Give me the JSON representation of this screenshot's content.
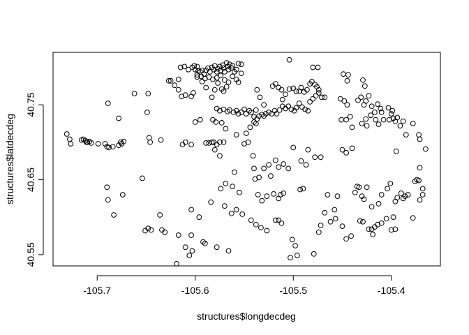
{
  "chart_data": {
    "type": "scatter",
    "xlabel": "structures$longdecdeg",
    "ylabel": "structures$latdecdeg",
    "xlim": [
      -105.745,
      -105.35
    ],
    "ylim": [
      40.535,
      40.82
    ],
    "xticks": [
      {
        "value": -105.7,
        "label": "-105.7"
      },
      {
        "value": -105.6,
        "label": "-105.6"
      },
      {
        "value": -105.5,
        "label": "-105.5"
      },
      {
        "value": -105.4,
        "label": "-105.4"
      }
    ],
    "yticks": [
      {
        "value": 40.55,
        "label": "40.55"
      },
      {
        "value": 40.65,
        "label": "40.65"
      },
      {
        "value": 40.75,
        "label": "40.75"
      }
    ],
    "grid": false,
    "legend": "none",
    "marker": "open-circle",
    "points": [
      [
        -105.731,
        40.711
      ],
      [
        -105.728,
        40.704
      ],
      [
        -105.727,
        40.698
      ],
      [
        -105.716,
        40.703
      ],
      [
        -105.714,
        40.704
      ],
      [
        -105.712,
        40.702
      ],
      [
        -105.711,
        40.7
      ],
      [
        -105.71,
        40.7
      ],
      [
        -105.708,
        40.701
      ],
      [
        -105.706,
        40.699
      ],
      [
        -105.699,
        40.698
      ],
      [
        -105.692,
        40.698
      ],
      [
        -105.69,
        40.694
      ],
      [
        -105.688,
        40.693
      ],
      [
        -105.684,
        40.694
      ],
      [
        -105.678,
        40.696
      ],
      [
        -105.676,
        40.7
      ],
      [
        -105.675,
        40.698
      ],
      [
        -105.673,
        40.701
      ],
      [
        -105.678,
        40.732
      ],
      [
        -105.689,
        40.752
      ],
      [
        -105.662,
        40.765
      ],
      [
        -105.648,
        40.765
      ],
      [
        -105.649,
        40.74
      ],
      [
        -105.647,
        40.706
      ],
      [
        -105.646,
        40.7
      ],
      [
        -105.635,
        40.703
      ],
      [
        -105.627,
        40.782
      ],
      [
        -105.625,
        40.782
      ],
      [
        -105.621,
        40.776
      ],
      [
        -105.617,
        40.784
      ],
      [
        -105.617,
        40.77
      ],
      [
        -105.614,
        40.761
      ],
      [
        -105.61,
        40.763
      ],
      [
        -105.604,
        40.761
      ],
      [
        -105.602,
        40.766
      ],
      [
        -105.598,
        40.787
      ],
      [
        -105.593,
        40.781
      ],
      [
        -105.589,
        40.773
      ],
      [
        -105.595,
        40.73
      ],
      [
        -105.6,
        40.727
      ],
      [
        -105.613,
        40.697
      ],
      [
        -105.61,
        40.7
      ],
      [
        -105.604,
        40.697
      ],
      [
        -105.589,
        40.699
      ],
      [
        -105.586,
        40.699
      ],
      [
        -105.583,
        40.7
      ],
      [
        -105.581,
        40.7
      ],
      [
        -105.578,
        40.697
      ],
      [
        -105.575,
        40.7
      ],
      [
        -105.571,
        40.7
      ],
      [
        -105.558,
        40.71
      ],
      [
        -105.55,
        40.698
      ],
      [
        -105.546,
        40.7
      ],
      [
        -105.541,
        40.682
      ],
      [
        -105.575,
        40.682
      ],
      [
        -105.58,
        40.69
      ],
      [
        -105.615,
        40.8
      ],
      [
        -105.611,
        40.801
      ],
      [
        -105.607,
        40.797
      ],
      [
        -105.603,
        40.8
      ],
      [
        -105.601,
        40.802
      ],
      [
        -105.6,
        40.797
      ],
      [
        -105.598,
        40.801
      ],
      [
        -105.597,
        40.795
      ],
      [
        -105.595,
        40.794
      ],
      [
        -105.593,
        40.796
      ],
      [
        -105.591,
        40.791
      ],
      [
        -105.589,
        40.796
      ],
      [
        -105.587,
        40.799
      ],
      [
        -105.585,
        40.794
      ],
      [
        -105.583,
        40.8
      ],
      [
        -105.581,
        40.797
      ],
      [
        -105.58,
        40.802
      ],
      [
        -105.578,
        40.794
      ],
      [
        -105.577,
        40.798
      ],
      [
        -105.575,
        40.801
      ],
      [
        -105.574,
        40.796
      ],
      [
        -105.572,
        40.803
      ],
      [
        -105.571,
        40.799
      ],
      [
        -105.57,
        40.794
      ],
      [
        -105.568,
        40.806
      ],
      [
        -105.567,
        40.801
      ],
      [
        -105.566,
        40.797
      ],
      [
        -105.565,
        40.804
      ],
      [
        -105.563,
        40.799
      ],
      [
        -105.562,
        40.802
      ],
      [
        -105.56,
        40.794
      ],
      [
        -105.558,
        40.797
      ],
      [
        -105.556,
        40.805
      ],
      [
        -105.553,
        40.804
      ],
      [
        -105.553,
        40.792
      ],
      [
        -105.598,
        40.79
      ],
      [
        -105.594,
        40.788
      ],
      [
        -105.59,
        40.785
      ],
      [
        -105.586,
        40.787
      ],
      [
        -105.582,
        40.784
      ],
      [
        -105.578,
        40.786
      ],
      [
        -105.574,
        40.789
      ],
      [
        -105.57,
        40.783
      ],
      [
        -105.566,
        40.78
      ],
      [
        -105.562,
        40.788
      ],
      [
        -105.558,
        40.784
      ],
      [
        -105.556,
        40.78
      ],
      [
        -105.58,
        40.77
      ],
      [
        -105.577,
        40.779
      ],
      [
        -105.573,
        40.771
      ],
      [
        -105.571,
        40.768
      ],
      [
        -105.568,
        40.774
      ],
      [
        -105.583,
        40.76
      ],
      [
        -105.578,
        40.745
      ],
      [
        -105.575,
        40.742
      ],
      [
        -105.571,
        40.744
      ],
      [
        -105.567,
        40.741
      ],
      [
        -105.565,
        40.743
      ],
      [
        -105.561,
        40.74
      ],
      [
        -105.558,
        40.742
      ],
      [
        -105.556,
        40.738
      ],
      [
        -105.582,
        40.73
      ],
      [
        -105.579,
        40.727
      ],
      [
        -105.573,
        40.726
      ],
      [
        -105.569,
        40.718
      ],
      [
        -105.553,
        40.74
      ],
      [
        -105.55,
        40.744
      ],
      [
        -105.548,
        40.738
      ],
      [
        -105.545,
        40.742
      ],
      [
        -105.543,
        40.74
      ],
      [
        -105.54,
        40.734
      ],
      [
        -105.538,
        40.743
      ],
      [
        -105.537,
        40.731
      ],
      [
        -105.535,
        40.735
      ],
      [
        -105.532,
        40.737
      ],
      [
        -105.53,
        40.735
      ],
      [
        -105.528,
        40.738
      ],
      [
        -105.525,
        40.74
      ],
      [
        -105.522,
        40.738
      ],
      [
        -105.519,
        40.742
      ],
      [
        -105.517,
        40.738
      ],
      [
        -105.514,
        40.743
      ],
      [
        -105.511,
        40.748
      ],
      [
        -105.508,
        40.745
      ],
      [
        -105.505,
        40.748
      ],
      [
        -105.502,
        40.744
      ],
      [
        -105.499,
        40.742
      ],
      [
        -105.497,
        40.746
      ],
      [
        -105.494,
        40.752
      ],
      [
        -105.491,
        40.747
      ],
      [
        -105.488,
        40.744
      ],
      [
        -105.485,
        40.742
      ],
      [
        -105.483,
        40.754
      ],
      [
        -105.48,
        40.758
      ],
      [
        -105.477,
        40.762
      ],
      [
        -105.474,
        40.766
      ],
      [
        -105.471,
        40.76
      ],
      [
        -105.468,
        40.76
      ],
      [
        -105.54,
        40.727
      ],
      [
        -105.538,
        40.725
      ],
      [
        -105.544,
        40.72
      ],
      [
        -105.548,
        40.712
      ],
      [
        -105.537,
        40.77
      ],
      [
        -105.534,
        40.76
      ],
      [
        -105.53,
        40.75
      ],
      [
        -105.521,
        40.775
      ],
      [
        -105.518,
        40.778
      ],
      [
        -105.515,
        40.773
      ],
      [
        -105.512,
        40.77
      ],
      [
        -105.511,
        40.757
      ],
      [
        -105.508,
        40.764
      ],
      [
        -105.504,
        40.771
      ],
      [
        -105.5,
        40.772
      ],
      [
        -105.497,
        40.768
      ],
      [
        -105.494,
        40.768
      ],
      [
        -105.492,
        40.773
      ],
      [
        -105.489,
        40.767
      ],
      [
        -105.486,
        40.77
      ],
      [
        -105.483,
        40.778
      ],
      [
        -105.481,
        40.781
      ],
      [
        -105.478,
        40.777
      ],
      [
        -105.476,
        40.774
      ],
      [
        -105.474,
        40.77
      ],
      [
        -105.48,
        40.8
      ],
      [
        -105.475,
        40.8
      ],
      [
        -105.504,
        40.81
      ],
      [
        -105.449,
        40.791
      ],
      [
        -105.444,
        40.79
      ],
      [
        -105.445,
        40.782
      ],
      [
        -105.452,
        40.758
      ],
      [
        -105.448,
        40.755
      ],
      [
        -105.445,
        40.75
      ],
      [
        -105.451,
        40.73
      ],
      [
        -105.446,
        40.73
      ],
      [
        -105.442,
        40.734
      ],
      [
        -105.44,
        40.72
      ],
      [
        -105.45,
        40.69
      ],
      [
        -105.446,
        40.686
      ],
      [
        -105.44,
        40.692
      ],
      [
        -105.434,
        40.756
      ],
      [
        -105.431,
        40.76
      ],
      [
        -105.428,
        40.75
      ],
      [
        -105.426,
        40.755
      ],
      [
        -105.429,
        40.783
      ],
      [
        -105.427,
        40.775
      ],
      [
        -105.423,
        40.762
      ],
      [
        -105.42,
        40.748
      ],
      [
        -105.417,
        40.74
      ],
      [
        -105.421,
        40.736
      ],
      [
        -105.416,
        40.73
      ],
      [
        -105.413,
        40.724
      ],
      [
        -105.41,
        40.74
      ],
      [
        -105.414,
        40.751
      ],
      [
        -105.411,
        40.745
      ],
      [
        -105.408,
        40.73
      ],
      [
        -105.43,
        40.725
      ],
      [
        -105.426,
        40.731
      ],
      [
        -105.425,
        40.722
      ],
      [
        -105.403,
        40.746
      ],
      [
        -105.4,
        40.738
      ],
      [
        -105.398,
        40.732
      ],
      [
        -105.396,
        40.728
      ],
      [
        -105.399,
        40.742
      ],
      [
        -105.402,
        40.73
      ],
      [
        -105.394,
        40.733
      ],
      [
        -105.391,
        40.722
      ],
      [
        -105.388,
        40.728
      ],
      [
        -105.385,
        40.71
      ],
      [
        -105.378,
        40.725
      ],
      [
        -105.372,
        40.71
      ],
      [
        -105.371,
        40.704
      ],
      [
        -105.365,
        40.691
      ],
      [
        -105.395,
        40.688
      ],
      [
        -105.371,
        40.666
      ],
      [
        -105.374,
        40.65
      ],
      [
        -105.376,
        40.648
      ],
      [
        -105.372,
        40.649
      ],
      [
        -105.368,
        40.638
      ],
      [
        -105.368,
        40.63
      ],
      [
        -105.371,
        40.623
      ],
      [
        -105.378,
        40.599
      ],
      [
        -105.383,
        40.63
      ],
      [
        -105.386,
        40.628
      ],
      [
        -105.39,
        40.632
      ],
      [
        -105.388,
        40.625
      ],
      [
        -105.394,
        40.626
      ],
      [
        -105.396,
        40.621
      ],
      [
        -105.401,
        40.645
      ],
      [
        -105.404,
        40.638
      ],
      [
        -105.41,
        40.63
      ],
      [
        -105.413,
        40.618
      ],
      [
        -105.42,
        40.614
      ],
      [
        -105.425,
        40.64
      ],
      [
        -105.428,
        40.624
      ],
      [
        -105.43,
        40.628
      ],
      [
        -105.433,
        40.64
      ],
      [
        -105.435,
        40.641
      ],
      [
        -105.437,
        40.633
      ],
      [
        -105.432,
        40.595
      ],
      [
        -105.429,
        40.594
      ],
      [
        -105.42,
        40.584
      ],
      [
        -105.417,
        40.587
      ],
      [
        -105.414,
        40.59
      ],
      [
        -105.41,
        40.592
      ],
      [
        -105.405,
        40.598
      ],
      [
        -105.398,
        40.6
      ],
      [
        -105.396,
        40.584
      ],
      [
        -105.4,
        40.583
      ],
      [
        -105.419,
        40.577
      ],
      [
        -105.423,
        40.584
      ],
      [
        -105.441,
        40.575
      ],
      [
        -105.446,
        40.571
      ],
      [
        -105.45,
        40.588
      ],
      [
        -105.457,
        40.598
      ],
      [
        -105.462,
        40.594
      ],
      [
        -105.458,
        40.61
      ],
      [
        -105.455,
        40.628
      ],
      [
        -105.465,
        40.63
      ],
      [
        -105.468,
        40.606
      ],
      [
        -105.472,
        40.589
      ],
      [
        -105.474,
        40.58
      ],
      [
        -105.49,
        40.638
      ],
      [
        -105.493,
        40.637
      ],
      [
        -105.479,
        40.551
      ],
      [
        -105.496,
        40.549
      ],
      [
        -105.498,
        40.562
      ],
      [
        -105.501,
        40.57
      ],
      [
        -105.503,
        40.546
      ],
      [
        -105.492,
        40.675
      ],
      [
        -105.487,
        40.67
      ],
      [
        -105.472,
        40.68
      ],
      [
        -105.478,
        40.68
      ],
      [
        -105.485,
        40.69
      ],
      [
        -105.5,
        40.693
      ],
      [
        -105.505,
        40.665
      ],
      [
        -105.51,
        40.671
      ],
      [
        -105.515,
        40.667
      ],
      [
        -105.518,
        40.676
      ],
      [
        -105.525,
        40.67
      ],
      [
        -105.53,
        40.665
      ],
      [
        -105.535,
        40.653
      ],
      [
        -105.539,
        40.651
      ],
      [
        -105.54,
        40.665
      ],
      [
        -105.536,
        40.63
      ],
      [
        -105.532,
        40.622
      ],
      [
        -105.527,
        40.628
      ],
      [
        -105.523,
        40.655
      ],
      [
        -105.52,
        40.631
      ],
      [
        -105.515,
        40.625
      ],
      [
        -105.513,
        40.63
      ],
      [
        -105.51,
        40.632
      ],
      [
        -105.518,
        40.596
      ],
      [
        -105.515,
        40.596
      ],
      [
        -105.512,
        40.592
      ],
      [
        -105.527,
        40.582
      ],
      [
        -105.533,
        40.586
      ],
      [
        -105.538,
        40.59
      ],
      [
        -105.543,
        40.596
      ],
      [
        -105.552,
        40.604
      ],
      [
        -105.558,
        40.61
      ],
      [
        -105.563,
        40.605
      ],
      [
        -105.555,
        40.633
      ],
      [
        -105.562,
        40.641
      ],
      [
        -105.569,
        40.645
      ],
      [
        -105.57,
        40.615
      ],
      [
        -105.574,
        40.638
      ],
      [
        -105.566,
        40.555
      ],
      [
        -105.578,
        40.56
      ],
      [
        -105.59,
        40.565
      ],
      [
        -105.592,
        40.567
      ],
      [
        -105.603,
        40.555
      ],
      [
        -105.606,
        40.549
      ],
      [
        -105.604,
        40.576
      ],
      [
        -105.61,
        40.56
      ],
      [
        -105.617,
        40.576
      ],
      [
        -105.619,
        40.538
      ],
      [
        -105.631,
        40.58
      ],
      [
        -105.634,
        40.583
      ],
      [
        -105.636,
        40.603
      ],
      [
        -105.645,
        40.583
      ],
      [
        -105.648,
        40.585
      ],
      [
        -105.651,
        40.582
      ],
      [
        -105.654,
        40.652
      ],
      [
        -105.683,
        40.603
      ],
      [
        -105.689,
        40.623
      ],
      [
        -105.69,
        40.64
      ],
      [
        -105.674,
        40.63
      ],
      [
        -105.604,
        40.61
      ],
      [
        -105.596,
        40.6
      ],
      [
        -105.584,
        40.62
      ],
      [
        -105.56,
        40.66
      ]
    ]
  }
}
